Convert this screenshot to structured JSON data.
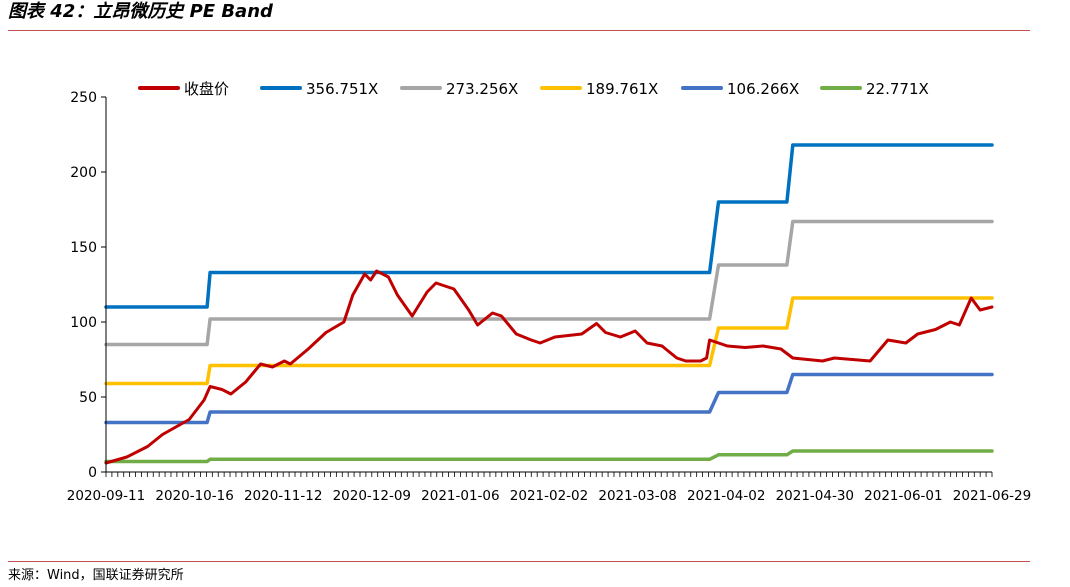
{
  "header": {
    "title": "图表 42：立昂微历史 PE Band"
  },
  "footer": {
    "source": "来源：Wind，国联证券研究所"
  },
  "chart_data": {
    "type": "line",
    "title": "",
    "xlabel": "",
    "ylabel": "",
    "ylim": [
      0,
      250
    ],
    "yticks": [
      0,
      50,
      100,
      150,
      200,
      250
    ],
    "xticklabels": [
      "2020-09-11",
      "2020-10-16",
      "2020-11-12",
      "2020-12-09",
      "2021-01-06",
      "2021-02-02",
      "2021-03-08",
      "2021-04-02",
      "2021-04-30",
      "2021-06-01",
      "2021-06-29"
    ],
    "grid": false,
    "legend": "top",
    "series": [
      {
        "name": "收盘价",
        "color": "#c00000",
        "kind": "price",
        "x": [
          "2020-09-11",
          "2020-09-18",
          "2020-09-25",
          "2020-09-30",
          "2020-10-09",
          "2020-10-14",
          "2020-10-16",
          "2020-10-20",
          "2020-10-23",
          "2020-10-28",
          "2020-11-02",
          "2020-11-06",
          "2020-11-10",
          "2020-11-12",
          "2020-11-18",
          "2020-11-24",
          "2020-11-30",
          "2020-12-03",
          "2020-12-07",
          "2020-12-09",
          "2020-12-11",
          "2020-12-15",
          "2020-12-18",
          "2020-12-23",
          "2020-12-28",
          "2020-12-31",
          "2021-01-06",
          "2021-01-11",
          "2021-01-14",
          "2021-01-19",
          "2021-01-22",
          "2021-01-27",
          "2021-02-01",
          "2021-02-04",
          "2021-02-09",
          "2021-02-18",
          "2021-02-23",
          "2021-02-26",
          "2021-03-03",
          "2021-03-08",
          "2021-03-12",
          "2021-03-17",
          "2021-03-22",
          "2021-03-25",
          "2021-03-30",
          "2021-04-01",
          "2021-04-02",
          "2021-04-08",
          "2021-04-14",
          "2021-04-20",
          "2021-04-26",
          "2021-04-30",
          "2021-05-10",
          "2021-05-14",
          "2021-05-20",
          "2021-05-26",
          "2021-06-01",
          "2021-06-07",
          "2021-06-11",
          "2021-06-17",
          "2021-06-22",
          "2021-06-25",
          "2021-06-29",
          "2021-07-02",
          "2021-07-06"
        ],
        "y": [
          6,
          10,
          17,
          25,
          35,
          48,
          57,
          55,
          52,
          60,
          72,
          70,
          74,
          72,
          82,
          93,
          100,
          118,
          132,
          128,
          134,
          130,
          118,
          104,
          120,
          126,
          122,
          108,
          98,
          106,
          104,
          92,
          88,
          86,
          90,
          92,
          99,
          93,
          90,
          94,
          86,
          84,
          76,
          74,
          74,
          76,
          88,
          84,
          83,
          84,
          82,
          76,
          74,
          76,
          75,
          74,
          88,
          86,
          92,
          95,
          100,
          98,
          116,
          108,
          110
        ],
        "values": [
          6,
          10,
          17,
          25,
          35,
          48,
          57,
          55,
          52,
          60,
          72,
          70,
          74,
          72,
          82,
          93,
          100,
          118,
          132,
          128,
          134,
          130,
          118,
          104,
          120,
          126,
          122,
          108,
          98,
          106,
          104,
          92,
          88,
          86,
          90,
          92,
          99,
          93,
          90,
          94,
          86,
          84,
          76,
          74,
          74,
          76,
          88,
          84,
          83,
          84,
          82,
          76,
          74,
          76,
          75,
          74,
          88,
          86,
          92,
          95,
          100,
          98,
          116,
          108,
          110
        ]
      },
      {
        "name": "356.751X",
        "color": "#0070c0",
        "kind": "band",
        "x": [
          "2020-09-11",
          "2020-10-15",
          "2020-10-16",
          "2021-04-02",
          "2021-04-05",
          "2021-04-28",
          "2021-04-30",
          "2021-07-06"
        ],
        "y": [
          110,
          110,
          133,
          133,
          180,
          180,
          218,
          218
        ],
        "values": [
          110,
          110,
          133,
          133,
          180,
          180,
          218,
          218
        ]
      },
      {
        "name": "273.256X",
        "color": "#a6a6a6",
        "kind": "band",
        "x": [
          "2020-09-11",
          "2020-10-15",
          "2020-10-16",
          "2021-04-02",
          "2021-04-05",
          "2021-04-28",
          "2021-04-30",
          "2021-07-06"
        ],
        "y": [
          85,
          85,
          102,
          102,
          138,
          138,
          167,
          167
        ],
        "values": [
          85,
          85,
          102,
          102,
          138,
          138,
          167,
          167
        ]
      },
      {
        "name": "189.761X",
        "color": "#ffc000",
        "kind": "band",
        "x": [
          "2020-09-11",
          "2020-10-15",
          "2020-10-16",
          "2021-04-02",
          "2021-04-05",
          "2021-04-28",
          "2021-04-30",
          "2021-07-06"
        ],
        "y": [
          59,
          59,
          71,
          71,
          96,
          96,
          116,
          116
        ],
        "values": [
          59,
          59,
          71,
          71,
          96,
          96,
          116,
          116
        ]
      },
      {
        "name": "106.266X",
        "color": "#4472c4",
        "kind": "band",
        "x": [
          "2020-09-11",
          "2020-10-15",
          "2020-10-16",
          "2021-04-02",
          "2021-04-05",
          "2021-04-28",
          "2021-04-30",
          "2021-07-06"
        ],
        "y": [
          33,
          33,
          40,
          40,
          53,
          53,
          65,
          65
        ],
        "values": [
          33,
          33,
          40,
          40,
          53,
          53,
          65,
          65
        ]
      },
      {
        "name": "22.771X",
        "color": "#70ad47",
        "kind": "band",
        "x": [
          "2020-09-11",
          "2020-10-15",
          "2020-10-16",
          "2021-04-02",
          "2021-04-05",
          "2021-04-28",
          "2021-04-30",
          "2021-07-06"
        ],
        "y": [
          7,
          7,
          8.5,
          8.5,
          11.5,
          11.5,
          14,
          14
        ],
        "values": [
          7,
          7,
          8.5,
          8.5,
          11.5,
          11.5,
          14,
          14
        ]
      }
    ]
  }
}
